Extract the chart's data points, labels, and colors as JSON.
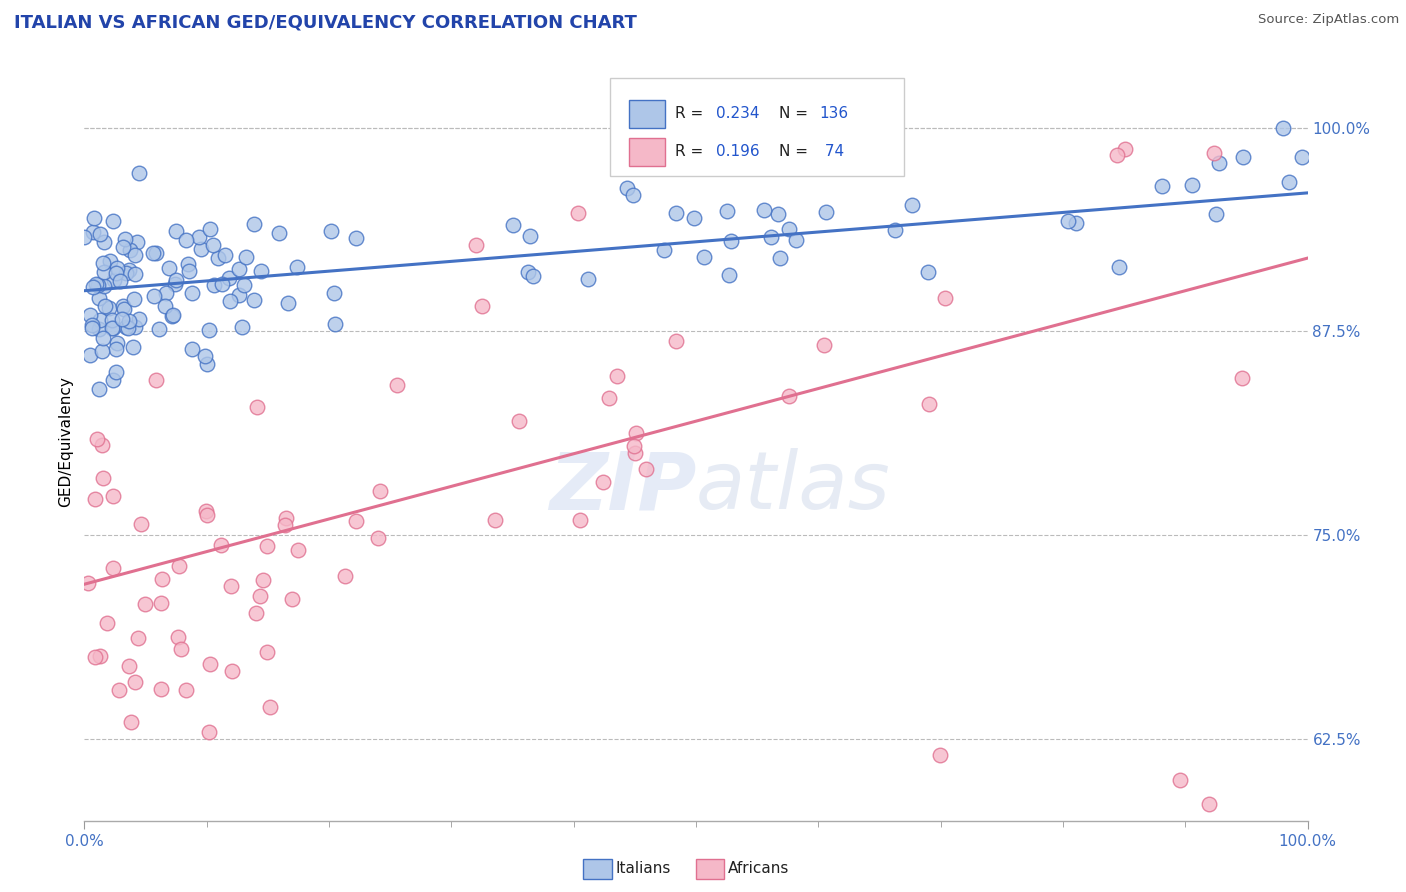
{
  "title": "ITALIAN VS AFRICAN GED/EQUIVALENCY CORRELATION CHART",
  "source": "Source: ZipAtlas.com",
  "ylabel": "GED/Equivalency",
  "ytick_labels": [
    "62.5%",
    "75.0%",
    "87.5%",
    "100.0%"
  ],
  "ytick_values": [
    0.625,
    0.75,
    0.875,
    1.0
  ],
  "xlim": [
    0.0,
    1.0
  ],
  "ylim": [
    0.575,
    1.04
  ],
  "legend_italian_R": "0.234",
  "legend_italian_N": "136",
  "legend_african_R": "0.196",
  "legend_african_N": " 74",
  "italian_color": "#aec6e8",
  "african_color": "#f5b8c8",
  "italian_line_color": "#4472c4",
  "african_line_color": "#e07090",
  "legend_R_color": "#2255cc",
  "legend_N_color": "#2255cc",
  "watermark_zip": "ZIP",
  "watermark_atlas": "atlas",
  "background_color": "#ffffff",
  "grid_color": "#bbbbbb",
  "italian_trend_x0": 0.0,
  "italian_trend_x1": 1.0,
  "italian_trend_y0": 0.9,
  "italian_trend_y1": 0.96,
  "african_trend_x0": 0.0,
  "african_trend_x1": 1.0,
  "african_trend_y0": 0.72,
  "african_trend_y1": 0.92
}
